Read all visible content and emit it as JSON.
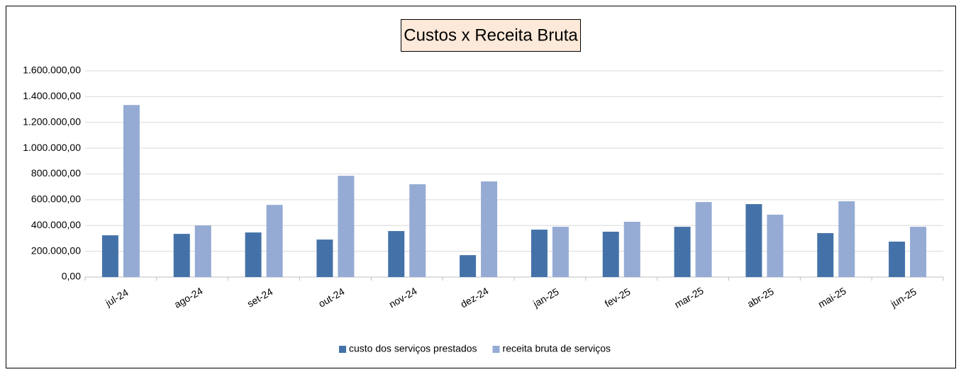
{
  "chart_data": {
    "type": "bar",
    "title": "Custos x Receita Bruta",
    "categories": [
      "jul-24",
      "ago-24",
      "set-24",
      "out-24",
      "nov-24",
      "dez-24",
      "jan-25",
      "fev-25",
      "mar-25",
      "abr-25",
      "mai-25",
      "jun-25"
    ],
    "series": [
      {
        "name": "custo dos serviços prestados",
        "color": "#4472a8",
        "values": [
          324000,
          335000,
          346000,
          291000,
          357000,
          170000,
          368000,
          352000,
          390000,
          566000,
          341000,
          275000
        ]
      },
      {
        "name": "receita bruta de serviços",
        "color": "#95abd4",
        "values": [
          1335000,
          401000,
          560000,
          786000,
          720000,
          742000,
          390000,
          429000,
          582000,
          484000,
          588000,
          390000
        ]
      }
    ],
    "ylim": [
      0,
      1600000
    ],
    "yticks": [
      {
        "value": 0,
        "label": "0,00"
      },
      {
        "value": 200000,
        "label": "200.000,00"
      },
      {
        "value": 400000,
        "label": "400.000,00"
      },
      {
        "value": 600000,
        "label": "600.000,00"
      },
      {
        "value": 800000,
        "label": "800.000,00"
      },
      {
        "value": 1000000,
        "label": "1.000.000,00"
      },
      {
        "value": 1200000,
        "label": "1.200.000,00"
      },
      {
        "value": 1400000,
        "label": "1.400.000,00"
      },
      {
        "value": 1600000,
        "label": "1.600.000,00"
      }
    ],
    "grid": true,
    "legend": "bottom"
  }
}
